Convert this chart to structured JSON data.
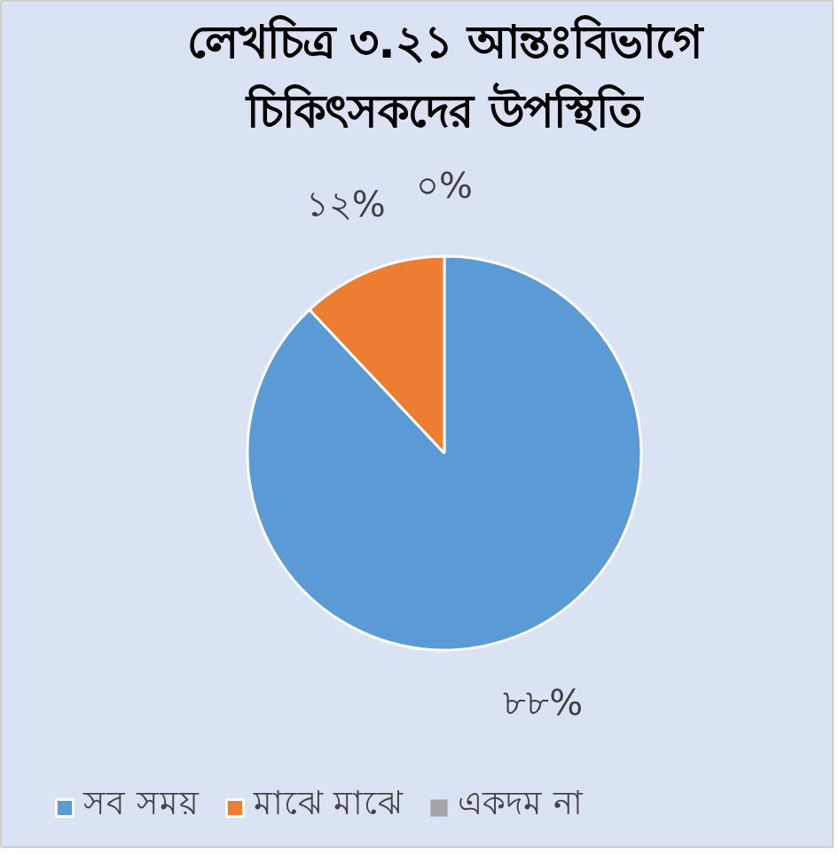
{
  "chart_data": {
    "type": "pie",
    "title": "লেখচিত্র ৩.২১ আন্তঃবিভাগে\nচিকিৎসকদের উপস্থিতি",
    "categories": [
      "সব সময়",
      "মাঝে মাঝে",
      "একদম না"
    ],
    "values": [
      88,
      12,
      0
    ],
    "colors": [
      "#5b9bd5",
      "#ed7d31",
      "#a5a5a5"
    ],
    "value_labels": [
      "৮৮%",
      "১২%",
      "০%"
    ],
    "legend": "bottom"
  }
}
